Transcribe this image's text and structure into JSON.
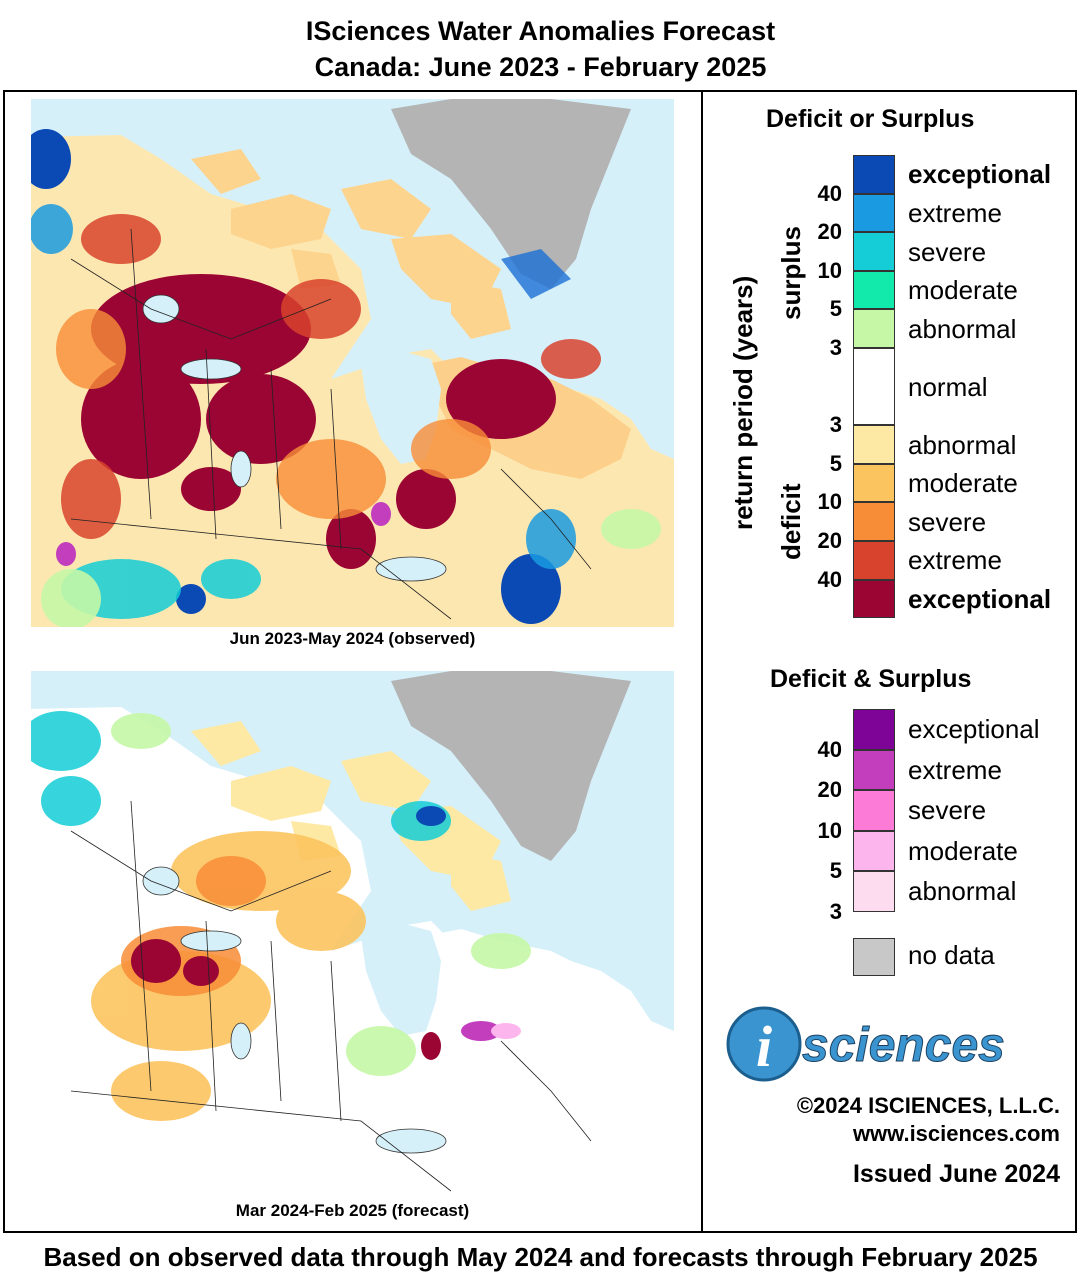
{
  "title_line1": "ISciences Water Anomalies Forecast",
  "title_line2": "Canada: June 2023 - February 2025",
  "maps": [
    {
      "caption": "Jun 2023-May 2024 (observed)"
    },
    {
      "caption": "Mar 2024-Feb 2025 (forecast)"
    }
  ],
  "footer": "Based on observed data through May 2024 and forecasts through February 2025",
  "legend": {
    "title": "Deficit or Surplus",
    "axis_label": "return period (years)",
    "surplus_label": "surplus",
    "deficit_label": "deficit",
    "surplus": [
      {
        "label": "exceptional",
        "color": "#0b49b5",
        "bold": true
      },
      {
        "label": "extreme",
        "color": "#1a9ae0"
      },
      {
        "label": "severe",
        "color": "#14cdd6"
      },
      {
        "label": "moderate",
        "color": "#12eaab"
      },
      {
        "label": "abnormal",
        "color": "#c5f7a6"
      }
    ],
    "normal": {
      "label": "normal",
      "color": "#ffffff"
    },
    "deficit": [
      {
        "label": "abnormal",
        "color": "#fde9a3"
      },
      {
        "label": "moderate",
        "color": "#fcc45f"
      },
      {
        "label": "severe",
        "color": "#f88d37"
      },
      {
        "label": "extreme",
        "color": "#d8432d"
      },
      {
        "label": "exceptional",
        "color": "#9b0534",
        "bold": true
      }
    ],
    "surplus_numbers": [
      "40",
      "20",
      "10",
      "5",
      "3"
    ],
    "deficit_numbers": [
      "3",
      "5",
      "10",
      "20",
      "40"
    ],
    "both_title": "Deficit & Surplus",
    "both": [
      {
        "label": "exceptional",
        "color": "#7e0397"
      },
      {
        "label": "extreme",
        "color": "#c23ebd"
      },
      {
        "label": "severe",
        "color": "#fb7bd6"
      },
      {
        "label": "moderate",
        "color": "#fdb6ed"
      },
      {
        "label": "abnormal",
        "color": "#fddcf0"
      }
    ],
    "both_numbers": [
      "40",
      "20",
      "10",
      "5",
      "3"
    ],
    "no_data": {
      "label": "no data",
      "color": "#c8c8c8"
    }
  },
  "logo": {
    "text": "sciences",
    "mark": "i"
  },
  "copyright": "©2024 ISCIENCES, L.L.C.",
  "website": "www.isciences.com",
  "issued": "Issued June 2024"
}
